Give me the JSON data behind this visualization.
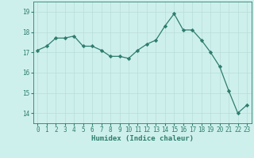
{
  "x": [
    0,
    1,
    2,
    3,
    4,
    5,
    6,
    7,
    8,
    9,
    10,
    11,
    12,
    13,
    14,
    15,
    16,
    17,
    18,
    19,
    20,
    21,
    22,
    23
  ],
  "y": [
    17.1,
    17.3,
    17.7,
    17.7,
    17.8,
    17.3,
    17.3,
    17.1,
    16.8,
    16.8,
    16.7,
    17.1,
    17.4,
    17.6,
    18.3,
    18.9,
    18.1,
    18.1,
    17.6,
    17.0,
    16.3,
    15.1,
    14.0,
    14.4
  ],
  "line_color": "#2e7d6e",
  "marker": "D",
  "marker_size": 2.2,
  "bg_color": "#cef0ec",
  "grid_color": "#b8ddd8",
  "xlabel": "Humidex (Indice chaleur)",
  "ylim": [
    13.5,
    19.5
  ],
  "xlim": [
    -0.5,
    23.5
  ],
  "yticks": [
    14,
    15,
    16,
    17,
    18,
    19
  ],
  "xticks": [
    0,
    1,
    2,
    3,
    4,
    5,
    6,
    7,
    8,
    9,
    10,
    11,
    12,
    13,
    14,
    15,
    16,
    17,
    18,
    19,
    20,
    21,
    22,
    23
  ],
  "label_fontsize": 6.5,
  "tick_fontsize": 5.5
}
